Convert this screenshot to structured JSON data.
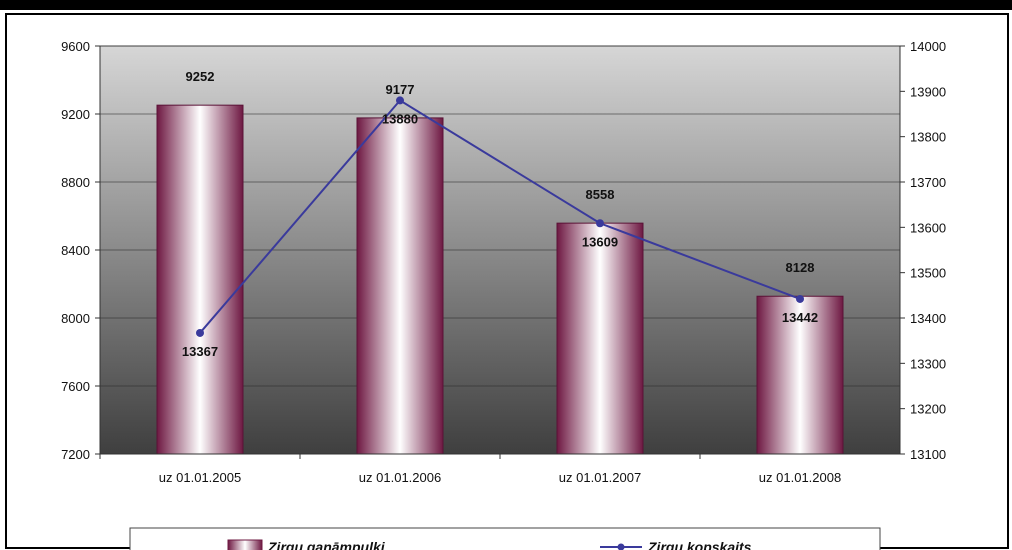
{
  "chart_data": {
    "type": "bar",
    "categories": [
      "uz 01.01.2005",
      "uz 01.01.2006",
      "uz 01.01.2007",
      "uz 01.01.2008"
    ],
    "series": [
      {
        "name": "Zirgu ganāmpulki",
        "type": "bar",
        "axis": "left",
        "values": [
          9252,
          9177,
          8558,
          8128
        ],
        "color": "#7a1f4a"
      },
      {
        "name": "Zirgu kopskaits",
        "type": "line",
        "axis": "right",
        "values": [
          13367,
          13880,
          13609,
          13442
        ],
        "color": "#3a3a9c"
      }
    ],
    "ylim_left": [
      7200,
      9600
    ],
    "yticks_left": [
      "9600",
      "9200",
      "8800",
      "8400",
      "8000",
      "7600",
      "7200"
    ],
    "ylim_right": [
      13100,
      14000
    ],
    "yticks_right": [
      "14000",
      "13900",
      "13800",
      "13700",
      "13600",
      "13500",
      "13400",
      "13300",
      "13200",
      "13100"
    ],
    "grid": true,
    "legend_position": "bottom"
  }
}
